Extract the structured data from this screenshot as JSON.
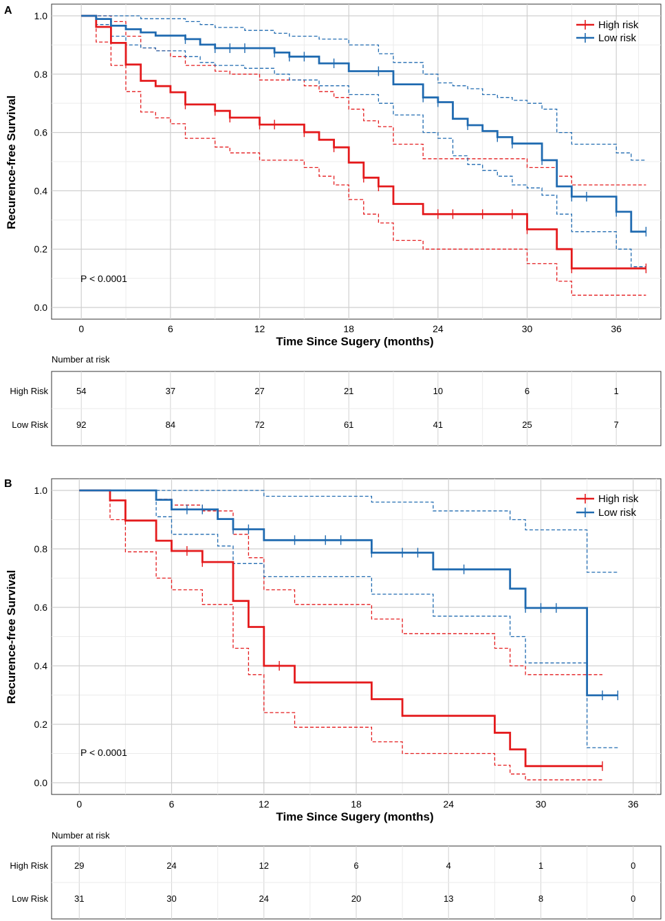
{
  "chart_data": [
    {
      "type": "line",
      "panel": "A",
      "xlabel": "Time Since Sugery (months)",
      "ylabel": "Recurence-free Survival",
      "xlim": [
        -2,
        39
      ],
      "ylim": [
        -0.04,
        1.04
      ],
      "xticks": [
        0,
        6,
        12,
        18,
        24,
        30,
        36
      ],
      "yticks": [
        0.0,
        0.2,
        0.4,
        0.6,
        0.8,
        1.0
      ],
      "ytick_labels": [
        "0.0",
        "0.2",
        "0.4",
        "0.6",
        "0.8",
        "1.0"
      ],
      "pvalue": "P < 0.0001",
      "legend_position": "top-right",
      "risk_table": {
        "title": "Number at risk",
        "rows": [
          {
            "label": "High Risk",
            "values": [
              54,
              37,
              27,
              21,
              10,
              6,
              1
            ]
          },
          {
            "label": "Low Risk",
            "values": [
              92,
              84,
              72,
              61,
              41,
              25,
              7
            ]
          }
        ]
      },
      "series": [
        {
          "name": "High risk",
          "color": "#e41a1c",
          "x": [
            0,
            1,
            2,
            3,
            4,
            5,
            6,
            7,
            9,
            10,
            12,
            15,
            16,
            17,
            18,
            19,
            20,
            21,
            23,
            30,
            32,
            33,
            38
          ],
          "y": [
            1.0,
            0.962,
            0.907,
            0.833,
            0.777,
            0.759,
            0.738,
            0.696,
            0.674,
            0.651,
            0.627,
            0.601,
            0.575,
            0.549,
            0.497,
            0.445,
            0.415,
            0.355,
            0.32,
            0.268,
            0.2,
            0.134,
            0.134
          ],
          "upper": [
            1.0,
            1.0,
            0.98,
            0.93,
            0.89,
            0.88,
            0.86,
            0.83,
            0.81,
            0.8,
            0.78,
            0.76,
            0.74,
            0.72,
            0.68,
            0.64,
            0.62,
            0.56,
            0.51,
            0.48,
            0.45,
            0.42,
            0.42
          ],
          "lower": [
            1.0,
            0.91,
            0.83,
            0.74,
            0.67,
            0.65,
            0.63,
            0.58,
            0.55,
            0.53,
            0.505,
            0.48,
            0.45,
            0.42,
            0.37,
            0.32,
            0.29,
            0.23,
            0.2,
            0.15,
            0.09,
            0.042,
            0.042
          ],
          "censor_x": [
            7,
            9,
            10,
            12,
            13,
            15,
            17,
            19,
            20,
            24,
            25,
            27,
            29,
            30,
            33,
            38
          ],
          "censor_y": [
            0.696,
            0.674,
            0.651,
            0.627,
            0.627,
            0.601,
            0.549,
            0.445,
            0.415,
            0.32,
            0.32,
            0.32,
            0.32,
            0.268,
            0.134,
            0.134
          ]
        },
        {
          "name": "Low risk",
          "color": "#1f6ab0",
          "x": [
            0,
            1,
            2,
            3,
            4,
            5,
            7,
            8,
            9,
            11,
            13,
            14,
            16,
            18,
            20,
            21,
            23,
            24,
            25,
            26,
            27,
            28,
            29,
            30,
            31,
            32,
            33,
            35,
            36,
            37,
            38
          ],
          "y": [
            1.0,
            0.989,
            0.966,
            0.954,
            0.943,
            0.932,
            0.92,
            0.901,
            0.889,
            0.889,
            0.874,
            0.86,
            0.837,
            0.81,
            0.81,
            0.765,
            0.72,
            0.704,
            0.647,
            0.625,
            0.605,
            0.584,
            0.562,
            0.562,
            0.505,
            0.415,
            0.38,
            0.38,
            0.328,
            0.26,
            0.26
          ],
          "upper": [
            1.0,
            1.0,
            1.0,
            1.0,
            0.99,
            0.99,
            0.98,
            0.97,
            0.96,
            0.95,
            0.94,
            0.93,
            0.92,
            0.9,
            0.87,
            0.84,
            0.8,
            0.77,
            0.76,
            0.75,
            0.73,
            0.72,
            0.71,
            0.7,
            0.68,
            0.6,
            0.56,
            0.56,
            0.53,
            0.505,
            0.505
          ],
          "lower": [
            1.0,
            0.97,
            0.93,
            0.9,
            0.89,
            0.88,
            0.86,
            0.84,
            0.83,
            0.82,
            0.8,
            0.78,
            0.76,
            0.73,
            0.7,
            0.66,
            0.6,
            0.58,
            0.52,
            0.49,
            0.47,
            0.45,
            0.42,
            0.41,
            0.385,
            0.32,
            0.26,
            0.26,
            0.2,
            0.14,
            0.14
          ],
          "censor_x": [
            7,
            9,
            10,
            11,
            13,
            14,
            15,
            17,
            20,
            23,
            24,
            26,
            28,
            29,
            31,
            33,
            34,
            36,
            38
          ],
          "censor_y": [
            0.92,
            0.889,
            0.889,
            0.889,
            0.874,
            0.86,
            0.86,
            0.837,
            0.81,
            0.72,
            0.704,
            0.625,
            0.584,
            0.562,
            0.505,
            0.38,
            0.38,
            0.328,
            0.26
          ]
        }
      ]
    },
    {
      "type": "line",
      "panel": "B",
      "xlabel": "Time Since Sugery (months)",
      "ylabel": "Recurence-free Survival",
      "xlim": [
        -1.8,
        37.8
      ],
      "ylim": [
        -0.04,
        1.04
      ],
      "xticks": [
        0,
        6,
        12,
        18,
        24,
        30,
        36
      ],
      "yticks": [
        0.0,
        0.2,
        0.4,
        0.6,
        0.8,
        1.0
      ],
      "ytick_labels": [
        "0.0",
        "0.2",
        "0.4",
        "0.6",
        "0.8",
        "1.0"
      ],
      "pvalue": "P < 0.0001",
      "legend_position": "top-right",
      "risk_table": {
        "title": "Number at risk",
        "rows": [
          {
            "label": "High Risk",
            "values": [
              29,
              24,
              12,
              6,
              4,
              1,
              0
            ]
          },
          {
            "label": "Low Risk",
            "values": [
              31,
              30,
              24,
              20,
              13,
              8,
              0
            ]
          }
        ]
      },
      "series": [
        {
          "name": "High risk",
          "color": "#e41a1c",
          "x": [
            0,
            2,
            3,
            5,
            6,
            8,
            10,
            11,
            12,
            14,
            19,
            21,
            27,
            28,
            29,
            34
          ],
          "y": [
            1.0,
            0.966,
            0.897,
            0.828,
            0.793,
            0.755,
            0.622,
            0.533,
            0.4,
            0.343,
            0.286,
            0.229,
            0.171,
            0.114,
            0.057,
            0.057
          ],
          "upper": [
            1.0,
            1.0,
            1.0,
            0.97,
            0.95,
            0.93,
            0.85,
            0.77,
            0.66,
            0.61,
            0.56,
            0.51,
            0.46,
            0.4,
            0.37,
            0.37
          ],
          "lower": [
            1.0,
            0.9,
            0.79,
            0.7,
            0.66,
            0.61,
            0.46,
            0.37,
            0.24,
            0.19,
            0.14,
            0.1,
            0.06,
            0.03,
            0.01,
            0.01
          ],
          "censor_x": [
            7,
            8,
            13,
            34
          ],
          "censor_y": [
            0.793,
            0.755,
            0.4,
            0.057
          ]
        },
        {
          "name": "Low risk",
          "color": "#1f6ab0",
          "x": [
            0,
            5,
            6,
            9,
            10,
            12,
            19,
            23,
            28,
            29,
            33,
            35
          ],
          "y": [
            1.0,
            0.968,
            0.935,
            0.902,
            0.867,
            0.83,
            0.787,
            0.73,
            0.664,
            0.598,
            0.299,
            0.299
          ],
          "upper": [
            1.0,
            1.0,
            1.0,
            1.0,
            1.0,
            0.98,
            0.96,
            0.93,
            0.9,
            0.865,
            0.72,
            0.72
          ],
          "lower": [
            1.0,
            0.91,
            0.85,
            0.81,
            0.75,
            0.705,
            0.645,
            0.57,
            0.5,
            0.41,
            0.12,
            0.12
          ],
          "censor_x": [
            7,
            8,
            10,
            11,
            14,
            16,
            17,
            19,
            21,
            22,
            25,
            29,
            30,
            31,
            34,
            35
          ],
          "censor_y": [
            0.935,
            0.935,
            0.867,
            0.867,
            0.83,
            0.83,
            0.83,
            0.787,
            0.787,
            0.787,
            0.73,
            0.598,
            0.598,
            0.598,
            0.299,
            0.299
          ]
        }
      ]
    }
  ]
}
